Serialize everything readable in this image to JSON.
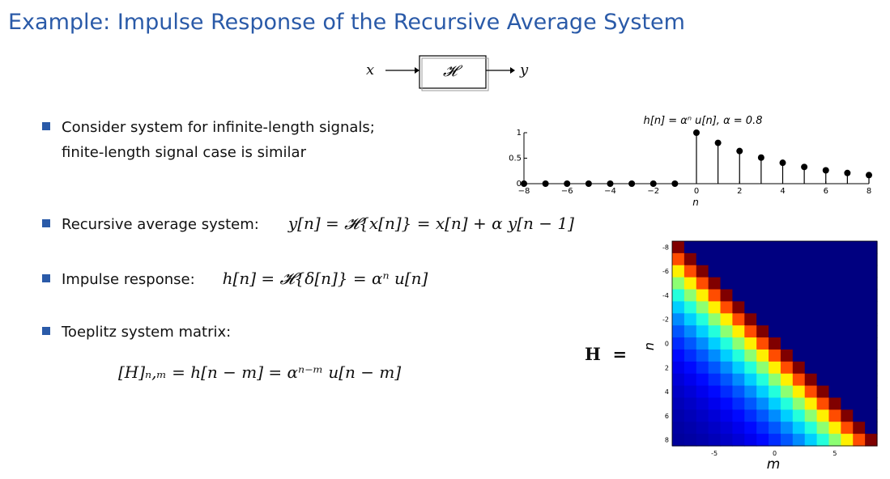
{
  "slide": {
    "title": "Example: Impulse Response of the Recursive Average System"
  },
  "block_diagram": {
    "input": "x",
    "system": "𝓗",
    "output": "y"
  },
  "bullets": [
    {
      "line1": "Consider system for infinite-length signals;",
      "line2": "finite-length signal case is similar"
    },
    {
      "label": "Recursive average system:",
      "equation": "y[n]  =  𝓗{x[n]}  =  x[n] + α y[n − 1]"
    },
    {
      "label": "Impulse response:",
      "equation": "h[n]  =  𝓗{δ[n]}  =  αⁿ u[n]"
    },
    {
      "label": "Toeplitz system matrix:",
      "equation": "[H]ₙ,ₘ = h[n − m] = αⁿ⁻ᵐ u[n − m]"
    }
  ],
  "matrix_label": "H  =",
  "colors": {
    "title": "#2a5aa8",
    "bullet": "#2a5aa8",
    "stem": "#000000"
  },
  "chart_data": [
    {
      "type": "stem",
      "title": "h[n] = αⁿ u[n],   α = 0.8",
      "xlabel": "n",
      "ylabel": "",
      "xlim": [
        -8,
        8
      ],
      "ylim": [
        0,
        1
      ],
      "xticks": [
        "−8",
        "−6",
        "−4",
        "−2",
        "0",
        "2",
        "4",
        "6",
        "8"
      ],
      "yticks": [
        "0",
        "0.5",
        "1"
      ],
      "x": [
        -8,
        -7,
        -6,
        -5,
        -4,
        -3,
        -2,
        -1,
        0,
        1,
        2,
        3,
        4,
        5,
        6,
        7,
        8
      ],
      "y": [
        0,
        0,
        0,
        0,
        0,
        0,
        0,
        0,
        1,
        0.8,
        0.64,
        0.512,
        0.41,
        0.328,
        0.262,
        0.21,
        0.168
      ]
    },
    {
      "type": "heatmap",
      "title": "",
      "xlabel": "m",
      "ylabel": "n",
      "x_range": [
        -8,
        8
      ],
      "y_range": [
        -8,
        8
      ],
      "xticks": [
        "-5",
        "0",
        "5"
      ],
      "yticks": [
        "-8",
        "-6",
        "-4",
        "-2",
        "0",
        "2",
        "4",
        "6",
        "8"
      ],
      "alpha": 0.8,
      "colormap": "jet",
      "note_values": "H[n,m] = 0.8^(n−m) for n ≥ m, else 0"
    }
  ]
}
